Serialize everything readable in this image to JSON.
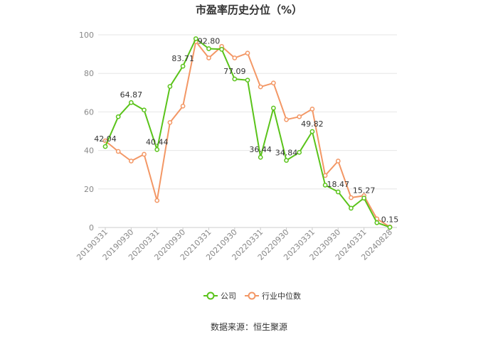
{
  "chart_data": {
    "type": "line",
    "title": "市盈率历史分位（%）",
    "source": "数据来源：恒生聚源",
    "ylim": [
      0,
      100
    ],
    "yticks": [
      0,
      20,
      40,
      60,
      80,
      100
    ],
    "x_tick_labels": [
      "20190331",
      "20190930",
      "20200331",
      "20200930",
      "20210331",
      "20210930",
      "20220331",
      "20220930",
      "20230331",
      "20230930",
      "20240331",
      "20240828"
    ],
    "x": [
      "20190331",
      "20190630",
      "20190930",
      "20191231",
      "20200331",
      "20200630",
      "20200930",
      "20201231",
      "20210331",
      "20210630",
      "20210930",
      "20211231",
      "20220331",
      "20220630",
      "20220930",
      "20221231",
      "20230331",
      "20230630",
      "20230930",
      "20231231",
      "20240331",
      "20240630",
      "20240828"
    ],
    "series": [
      {
        "name": "公司",
        "color": "#5ac31a",
        "values": [
          42.04,
          57.5,
          64.87,
          61.0,
          40.44,
          73.2,
          83.71,
          98.0,
          92.8,
          92.5,
          77.09,
          76.5,
          36.44,
          62.0,
          34.84,
          39.0,
          49.82,
          22.0,
          18.47,
          10.0,
          15.27,
          2.5,
          0.15
        ],
        "labels": {
          "0": "42.04",
          "2": "64.87",
          "4": "40.44",
          "6": "83.71",
          "8": "92.80",
          "10": "77.09",
          "12": "36.44",
          "14": "34.84",
          "16": "49.82",
          "18": "18.47",
          "20": "15.27",
          "22": "0.15"
        }
      },
      {
        "name": "行业中位数",
        "color": "#f39765",
        "values": [
          45.0,
          39.5,
          34.5,
          38.0,
          14.0,
          54.5,
          63.0,
          96.5,
          88.0,
          94.0,
          88.0,
          90.5,
          73.0,
          75.0,
          56.0,
          57.5,
          61.5,
          27.0,
          34.5,
          15.5,
          16.5,
          4.5,
          0.3
        ]
      }
    ],
    "legend_position": "bottom"
  }
}
